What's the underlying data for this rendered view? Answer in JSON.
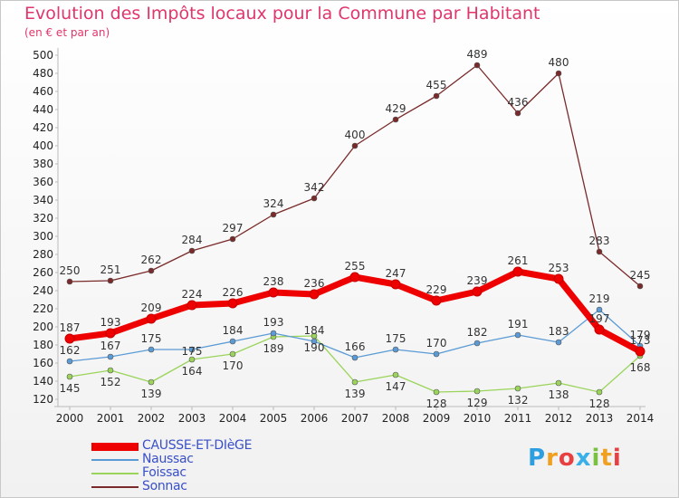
{
  "header": {
    "title": "Evolution des Impôts locaux pour la Commune par Habitant",
    "subtitle": "(en € et par an)"
  },
  "chart_data": {
    "type": "line",
    "title": "Evolution des Impôts locaux pour la Commune par Habitant",
    "subtitle": "(en € et par an)",
    "x": [
      "2000",
      "2001",
      "2002",
      "2003",
      "2004",
      "2005",
      "2006",
      "2007",
      "2008",
      "2009",
      "2010",
      "2011",
      "2012",
      "2013",
      "2014"
    ],
    "ylim": [
      120,
      500
    ],
    "ytick_step": 20,
    "grid": false,
    "legend_position": "bottom-left",
    "series": [
      {
        "name": "CAUSSE-ET-DIèGE",
        "color": "#ee0000",
        "values": [
          187,
          193,
          209,
          224,
          226,
          238,
          236,
          255,
          247,
          229,
          239,
          261,
          253,
          197,
          173
        ]
      },
      {
        "name": "Naussac",
        "color": "#5b9bd5",
        "values": [
          162,
          167,
          175,
          175,
          184,
          193,
          184,
          166,
          175,
          170,
          182,
          191,
          183,
          219,
          179
        ]
      },
      {
        "name": "Foissac",
        "color": "#9ad45a",
        "values": [
          145,
          152,
          139,
          164,
          170,
          189,
          190,
          139,
          147,
          128,
          129,
          132,
          138,
          128,
          168
        ]
      },
      {
        "name": "Sonnac",
        "color": "#7a2a2a",
        "values": [
          250,
          251,
          262,
          284,
          297,
          324,
          342,
          400,
          429,
          455,
          489,
          436,
          480,
          283,
          245
        ]
      }
    ]
  },
  "legend": {
    "items": [
      {
        "label": "CAUSSE-ET-DIèGE",
        "color": "#ee0000"
      },
      {
        "label": "Naussac",
        "color": "#5b9bd5"
      },
      {
        "label": "Foissac",
        "color": "#9ad45a"
      },
      {
        "label": "Sonnac",
        "color": "#7a2a2a"
      }
    ]
  },
  "logo": {
    "letters": [
      "P",
      "r",
      "o",
      "x",
      "i",
      "t",
      "i"
    ],
    "colors": [
      "#2d9fe0",
      "#f0a020",
      "#e84040",
      "#3ab0e8",
      "#7ac142",
      "#f0a020",
      "#e84040"
    ]
  }
}
